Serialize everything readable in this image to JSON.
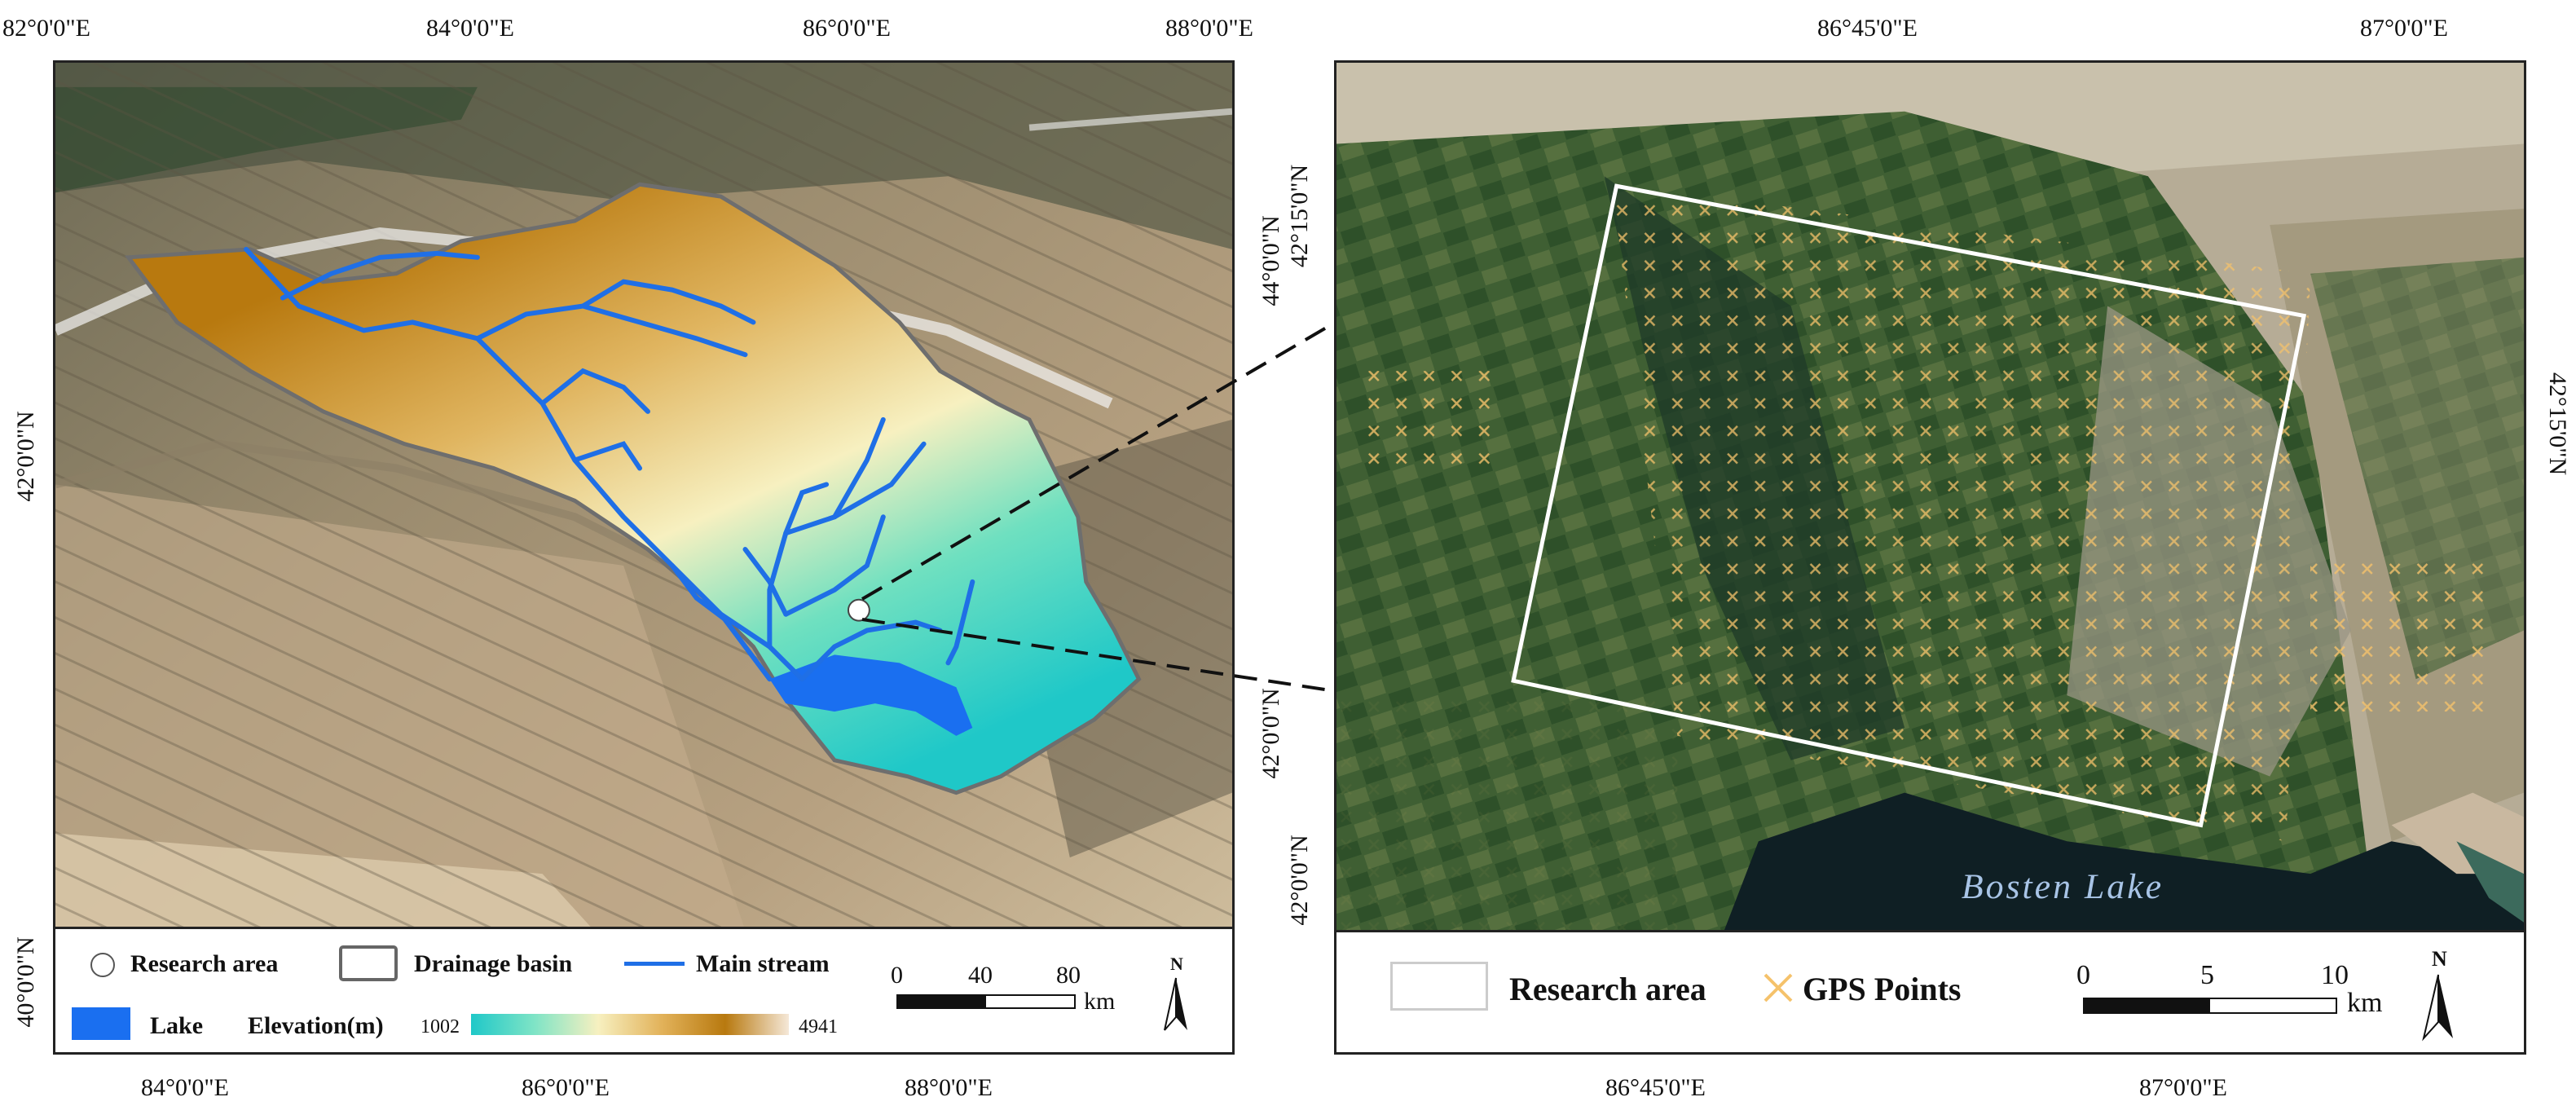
{
  "left_map": {
    "top_ticks": [
      "82°0'0\"E",
      "84°0'0\"E",
      "86°0'0\"E",
      "88°0'0\"E"
    ],
    "bottom_ticks": [
      "84°0'0\"E",
      "86°0'0\"E",
      "88°0'0\"E"
    ],
    "left_ticks": [
      "42°0'0\"N",
      "40°0'0\"N"
    ],
    "right_ticks": [
      "44°0'0\"N",
      "42°0'0\"N"
    ],
    "legend": {
      "research_area": "Research area",
      "drainage_basin": "Drainage basin",
      "main_stream": "Main stream",
      "lake": "Lake",
      "elevation": "Elevation(m)",
      "elev_min": "1002",
      "elev_max": "4941",
      "scale_labels": [
        "0",
        "40",
        "80"
      ],
      "scale_unit": "km",
      "north": "N"
    },
    "colors": {
      "lake": "#1a6ff0",
      "stream": "#1f6fe6",
      "elev_low": "#1fc8c8",
      "elev_mid": "#f7f0c0",
      "elev_high": "#b8790f"
    }
  },
  "right_map": {
    "top_ticks": [
      "86°45'0\"E",
      "87°0'0\"E"
    ],
    "bottom_ticks": [
      "86°45'0\"E",
      "87°0'0\"E"
    ],
    "left_ticks": [
      "42°15'0\"N",
      "42°0'0\"N"
    ],
    "right_ticks": [
      "42°15'0\"N"
    ],
    "lake_label": "Bosten Lake",
    "legend": {
      "research_area": "Research area",
      "gps_points": "GPS Points",
      "scale_labels": [
        "0",
        "5",
        "10"
      ],
      "scale_unit": "km",
      "north": "N"
    },
    "colors": {
      "gps": "#f5c26b",
      "research_box": "#ffffff"
    }
  }
}
